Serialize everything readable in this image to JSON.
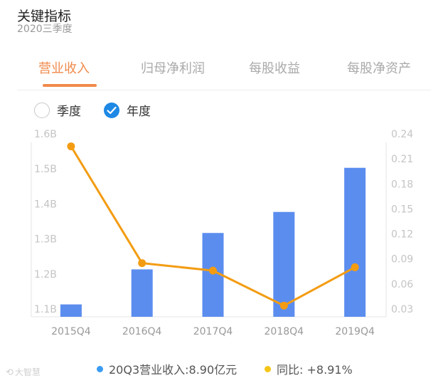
{
  "header": {
    "title": "关键指标",
    "subtitle": "2020三季度"
  },
  "tabs": [
    {
      "label": "营业收入",
      "active": true
    },
    {
      "label": "归母净利润",
      "active": false
    },
    {
      "label": "每股收益",
      "active": false
    },
    {
      "label": "每股净资产",
      "active": false
    }
  ],
  "period_toggle": {
    "quarter_label": "季度",
    "quarter_checked": false,
    "year_label": "年度",
    "year_checked": true
  },
  "colors": {
    "accent": "#f08a4b",
    "bar": "#5b8def",
    "line": "#f39c12",
    "check": "#1e88e5",
    "legend_bar": "#3a9bf0",
    "legend_line": "#f5c518"
  },
  "chart_data": {
    "type": "bar",
    "categories": [
      "2015Q4",
      "2016Q4",
      "2017Q4",
      "2018Q4",
      "2019Q4"
    ],
    "series": [
      {
        "type": "bar",
        "axis": "left",
        "values": [
          1.113,
          1.213,
          1.317,
          1.377,
          1.503
        ]
      },
      {
        "type": "line",
        "axis": "right",
        "values": [
          0.225,
          0.085,
          0.076,
          0.034,
          0.08
        ]
      }
    ],
    "y_left": {
      "ylim": [
        1.1,
        1.6
      ],
      "ticks": [
        "1.1B",
        "1.2B",
        "1.3B",
        "1.4B",
        "1.5B",
        "1.6B"
      ]
    },
    "y_right": {
      "ylim": [
        0.03,
        0.24
      ],
      "ticks": [
        "0.03",
        "0.06",
        "0.09",
        "0.12",
        "0.15",
        "0.18",
        "0.21",
        "0.24"
      ]
    },
    "grid": false
  },
  "legend": {
    "revenue": "20Q3营业收入:8.90亿元",
    "yoy": "同比: +8.91%"
  },
  "watermark": "大智慧"
}
